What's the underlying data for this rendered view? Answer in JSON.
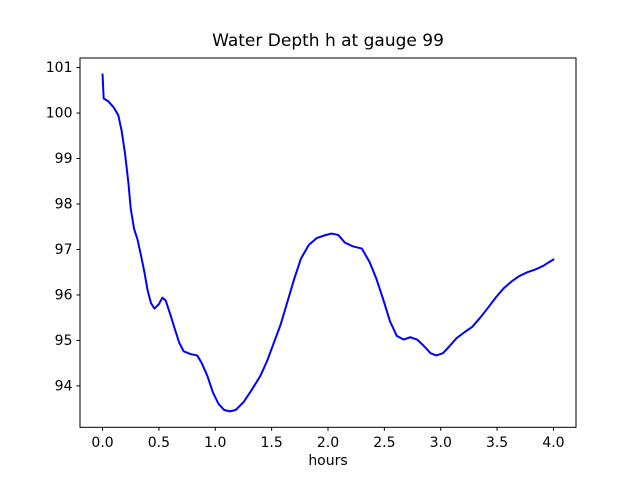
{
  "figure": {
    "background": "#ffffff",
    "frame_color": "#000000",
    "text_color": "#000000"
  },
  "chart_data": {
    "type": "line",
    "title": "Water Depth h at gauge 99",
    "xlabel": "hours",
    "ylabel": "",
    "grid": false,
    "legend": null,
    "xlim": [
      -0.2,
      4.2
    ],
    "ylim": [
      93.09,
      101.21
    ],
    "xtick_values": [
      0.0,
      0.5,
      1.0,
      1.5,
      2.0,
      2.5,
      3.0,
      3.5,
      4.0
    ],
    "xtick_labels": [
      "0.0",
      "0.5",
      "1.0",
      "1.5",
      "2.0",
      "2.5",
      "3.0",
      "3.5",
      "4.0"
    ],
    "ytick_values": [
      94,
      95,
      96,
      97,
      98,
      99,
      100,
      101
    ],
    "ytick_labels": [
      "94",
      "95",
      "96",
      "97",
      "98",
      "99",
      "100",
      "101"
    ],
    "series": [
      {
        "name": "h",
        "color": "#0000ff",
        "line_width": 2,
        "x": [
          0.0,
          0.01,
          0.05,
          0.1,
          0.14,
          0.17,
          0.2,
          0.23,
          0.25,
          0.28,
          0.31,
          0.34,
          0.37,
          0.4,
          0.43,
          0.46,
          0.5,
          0.53,
          0.56,
          0.6,
          0.64,
          0.68,
          0.72,
          0.78,
          0.84,
          0.88,
          0.93,
          0.98,
          1.03,
          1.08,
          1.13,
          1.18,
          1.25,
          1.32,
          1.4,
          1.46,
          1.52,
          1.58,
          1.64,
          1.7,
          1.76,
          1.83,
          1.9,
          1.97,
          2.03,
          2.09,
          2.15,
          2.22,
          2.3,
          2.37,
          2.43,
          2.49,
          2.55,
          2.61,
          2.67,
          2.73,
          2.79,
          2.85,
          2.91,
          2.96,
          3.02,
          3.08,
          3.14,
          3.21,
          3.28,
          3.35,
          3.42,
          3.49,
          3.56,
          3.63,
          3.7,
          3.77,
          3.84,
          3.91,
          3.96,
          4.0
        ],
        "y": [
          100.85,
          100.32,
          100.26,
          100.12,
          99.95,
          99.6,
          99.1,
          98.45,
          97.9,
          97.45,
          97.22,
          96.88,
          96.52,
          96.1,
          95.82,
          95.7,
          95.8,
          95.94,
          95.88,
          95.58,
          95.26,
          94.95,
          94.76,
          94.7,
          94.67,
          94.5,
          94.22,
          93.85,
          93.6,
          93.47,
          93.44,
          93.47,
          93.64,
          93.9,
          94.22,
          94.55,
          94.95,
          95.35,
          95.85,
          96.35,
          96.8,
          97.1,
          97.25,
          97.31,
          97.35,
          97.32,
          97.15,
          97.07,
          97.02,
          96.72,
          96.35,
          95.9,
          95.42,
          95.1,
          95.02,
          95.07,
          95.02,
          94.88,
          94.72,
          94.67,
          94.72,
          94.88,
          95.05,
          95.18,
          95.3,
          95.5,
          95.72,
          95.95,
          96.15,
          96.3,
          96.42,
          96.5,
          96.56,
          96.64,
          96.72,
          96.78
        ]
      }
    ]
  }
}
